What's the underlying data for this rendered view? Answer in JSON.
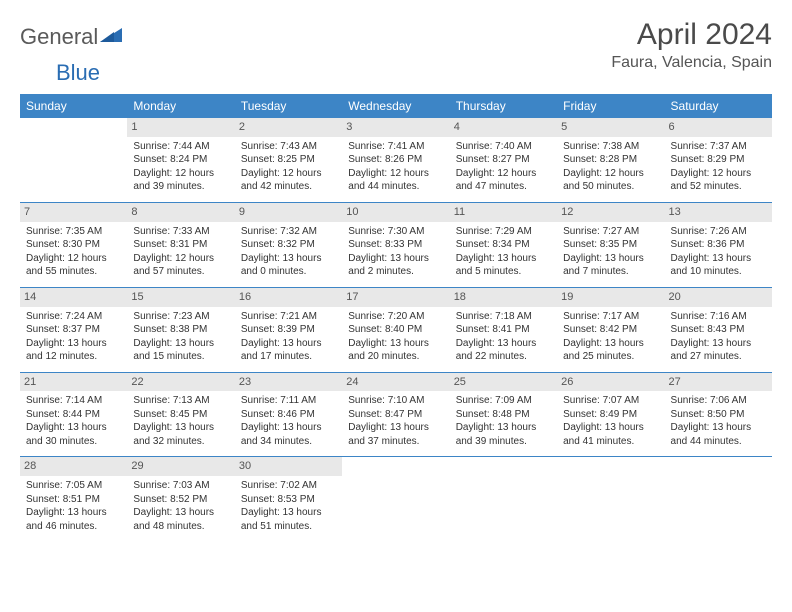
{
  "brand": {
    "text1": "General",
    "text2": "Blue"
  },
  "title": "April 2024",
  "location": "Faura, Valencia, Spain",
  "colors": {
    "header_bg": "#3d85c6",
    "header_text": "#ffffff",
    "daynum_bg": "#e8e8e8",
    "row_border": "#3d85c6",
    "logo_blue": "#2a6db3"
  },
  "weekdays": [
    "Sunday",
    "Monday",
    "Tuesday",
    "Wednesday",
    "Thursday",
    "Friday",
    "Saturday"
  ],
  "weeks": [
    [
      null,
      {
        "n": "1",
        "sr": "7:44 AM",
        "ss": "8:24 PM",
        "dl": "12 hours and 39 minutes."
      },
      {
        "n": "2",
        "sr": "7:43 AM",
        "ss": "8:25 PM",
        "dl": "12 hours and 42 minutes."
      },
      {
        "n": "3",
        "sr": "7:41 AM",
        "ss": "8:26 PM",
        "dl": "12 hours and 44 minutes."
      },
      {
        "n": "4",
        "sr": "7:40 AM",
        "ss": "8:27 PM",
        "dl": "12 hours and 47 minutes."
      },
      {
        "n": "5",
        "sr": "7:38 AM",
        "ss": "8:28 PM",
        "dl": "12 hours and 50 minutes."
      },
      {
        "n": "6",
        "sr": "7:37 AM",
        "ss": "8:29 PM",
        "dl": "12 hours and 52 minutes."
      }
    ],
    [
      {
        "n": "7",
        "sr": "7:35 AM",
        "ss": "8:30 PM",
        "dl": "12 hours and 55 minutes."
      },
      {
        "n": "8",
        "sr": "7:33 AM",
        "ss": "8:31 PM",
        "dl": "12 hours and 57 minutes."
      },
      {
        "n": "9",
        "sr": "7:32 AM",
        "ss": "8:32 PM",
        "dl": "13 hours and 0 minutes."
      },
      {
        "n": "10",
        "sr": "7:30 AM",
        "ss": "8:33 PM",
        "dl": "13 hours and 2 minutes."
      },
      {
        "n": "11",
        "sr": "7:29 AM",
        "ss": "8:34 PM",
        "dl": "13 hours and 5 minutes."
      },
      {
        "n": "12",
        "sr": "7:27 AM",
        "ss": "8:35 PM",
        "dl": "13 hours and 7 minutes."
      },
      {
        "n": "13",
        "sr": "7:26 AM",
        "ss": "8:36 PM",
        "dl": "13 hours and 10 minutes."
      }
    ],
    [
      {
        "n": "14",
        "sr": "7:24 AM",
        "ss": "8:37 PM",
        "dl": "13 hours and 12 minutes."
      },
      {
        "n": "15",
        "sr": "7:23 AM",
        "ss": "8:38 PM",
        "dl": "13 hours and 15 minutes."
      },
      {
        "n": "16",
        "sr": "7:21 AM",
        "ss": "8:39 PM",
        "dl": "13 hours and 17 minutes."
      },
      {
        "n": "17",
        "sr": "7:20 AM",
        "ss": "8:40 PM",
        "dl": "13 hours and 20 minutes."
      },
      {
        "n": "18",
        "sr": "7:18 AM",
        "ss": "8:41 PM",
        "dl": "13 hours and 22 minutes."
      },
      {
        "n": "19",
        "sr": "7:17 AM",
        "ss": "8:42 PM",
        "dl": "13 hours and 25 minutes."
      },
      {
        "n": "20",
        "sr": "7:16 AM",
        "ss": "8:43 PM",
        "dl": "13 hours and 27 minutes."
      }
    ],
    [
      {
        "n": "21",
        "sr": "7:14 AM",
        "ss": "8:44 PM",
        "dl": "13 hours and 30 minutes."
      },
      {
        "n": "22",
        "sr": "7:13 AM",
        "ss": "8:45 PM",
        "dl": "13 hours and 32 minutes."
      },
      {
        "n": "23",
        "sr": "7:11 AM",
        "ss": "8:46 PM",
        "dl": "13 hours and 34 minutes."
      },
      {
        "n": "24",
        "sr": "7:10 AM",
        "ss": "8:47 PM",
        "dl": "13 hours and 37 minutes."
      },
      {
        "n": "25",
        "sr": "7:09 AM",
        "ss": "8:48 PM",
        "dl": "13 hours and 39 minutes."
      },
      {
        "n": "26",
        "sr": "7:07 AM",
        "ss": "8:49 PM",
        "dl": "13 hours and 41 minutes."
      },
      {
        "n": "27",
        "sr": "7:06 AM",
        "ss": "8:50 PM",
        "dl": "13 hours and 44 minutes."
      }
    ],
    [
      {
        "n": "28",
        "sr": "7:05 AM",
        "ss": "8:51 PM",
        "dl": "13 hours and 46 minutes."
      },
      {
        "n": "29",
        "sr": "7:03 AM",
        "ss": "8:52 PM",
        "dl": "13 hours and 48 minutes."
      },
      {
        "n": "30",
        "sr": "7:02 AM",
        "ss": "8:53 PM",
        "dl": "13 hours and 51 minutes."
      },
      null,
      null,
      null,
      null
    ]
  ],
  "labels": {
    "sunrise": "Sunrise:",
    "sunset": "Sunset:",
    "daylight": "Daylight:"
  }
}
